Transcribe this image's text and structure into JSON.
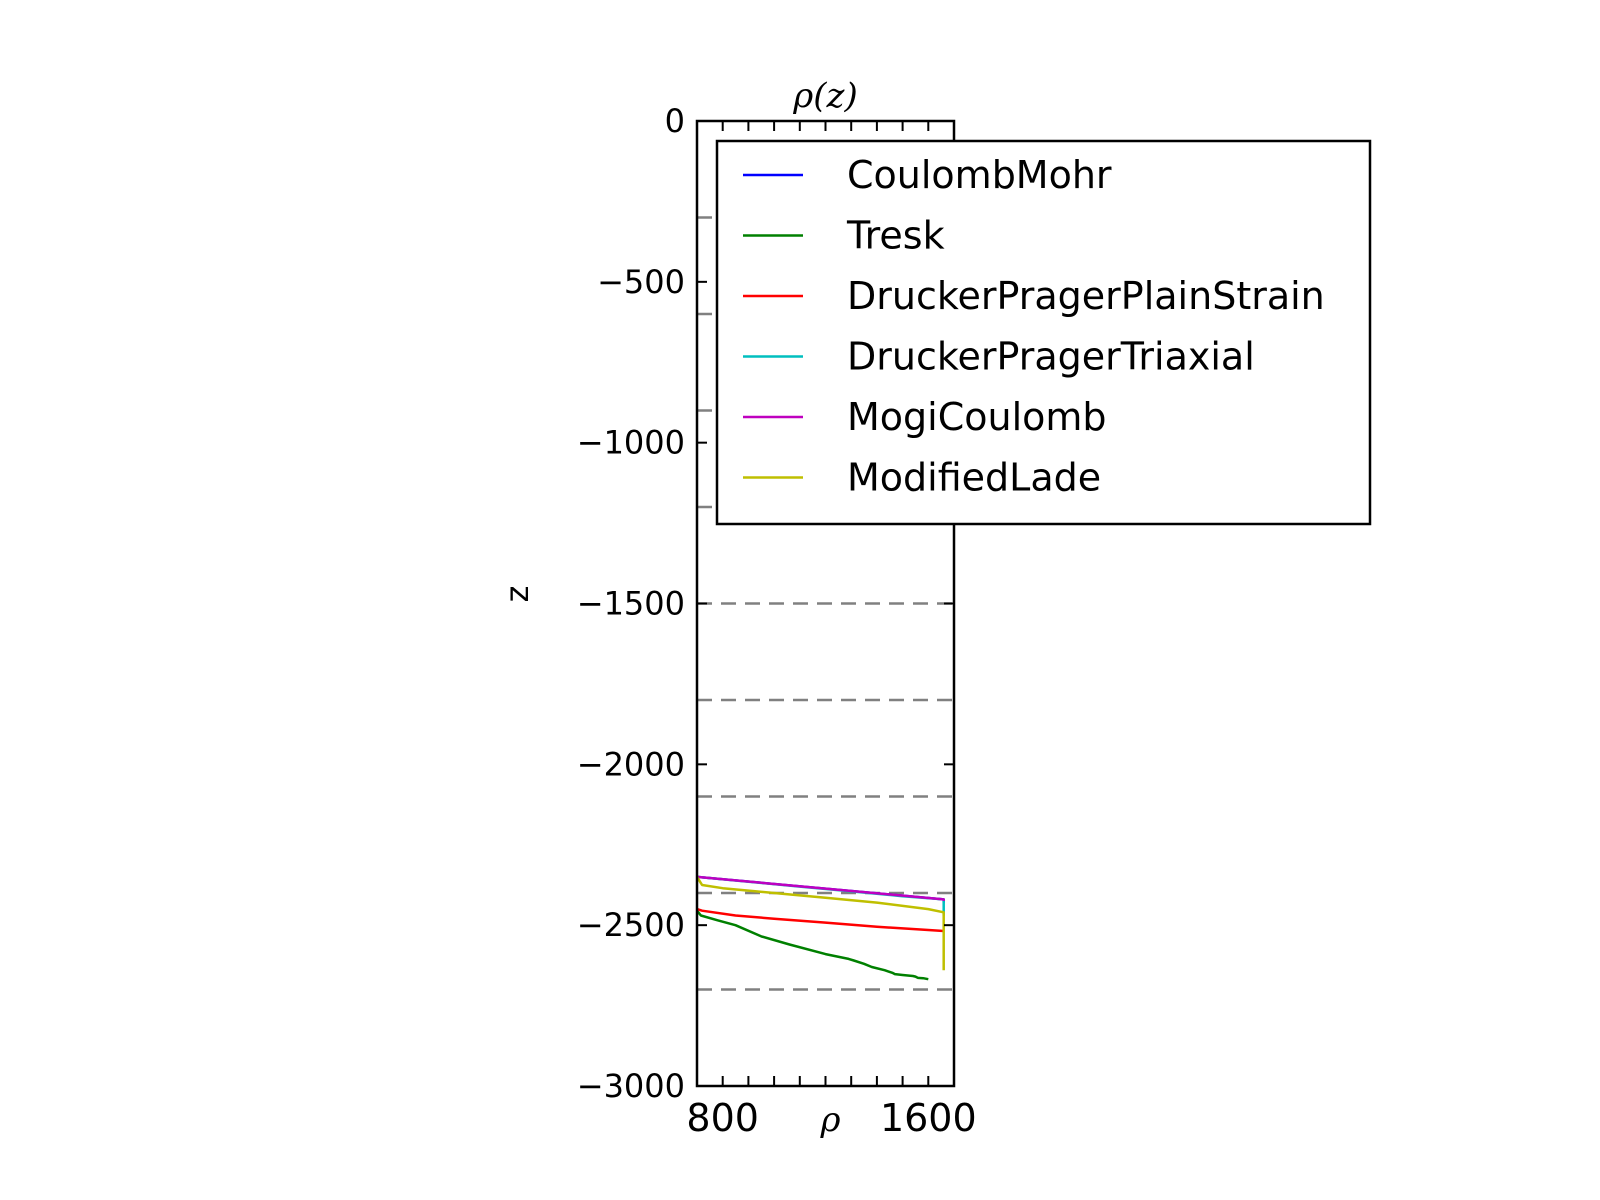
{
  "chart_data": {
    "type": "line",
    "title": "ρ(z)",
    "xlabel": "ρ",
    "ylabel": "z",
    "xlim": [
      700,
      1700
    ],
    "ylim": [
      -3000,
      0
    ],
    "xticks": [
      800,
      1600
    ],
    "xtick_labels": [
      "800",
      "1600"
    ],
    "x_minor_ticks": [
      800,
      900,
      1000,
      1100,
      1200,
      1300,
      1400,
      1500,
      1600
    ],
    "yticks": [
      0,
      -500,
      -1000,
      -1500,
      -2000,
      -2500,
      -3000
    ],
    "ytick_labels": [
      "0",
      "−500",
      "−1000",
      "−1500",
      "−2000",
      "−2500",
      "−3000"
    ],
    "hlines": [
      -300,
      -600,
      -900,
      -1200,
      -1500,
      -1800,
      -2100,
      -2400,
      -2700
    ],
    "hline_color": "#808080",
    "legend_position": "upper-right",
    "grid": false,
    "series": [
      {
        "name": "CoulombMohr",
        "color": "#0000ff",
        "x": [
          700,
          1660,
          1660
        ],
        "y": [
          -2350,
          -2420,
          -2430
        ]
      },
      {
        "name": "Tresk",
        "color": "#008000",
        "x": [
          700,
          715,
          780,
          850,
          950,
          1060,
          1200,
          1290,
          1310,
          1350,
          1380,
          1430,
          1460,
          1470,
          1500,
          1540,
          1550,
          1555,
          1560,
          1580,
          1600
        ],
        "y": [
          -2455,
          -2470,
          -2485,
          -2500,
          -2535,
          -2560,
          -2590,
          -2605,
          -2610,
          -2620,
          -2630,
          -2640,
          -2648,
          -2652,
          -2655,
          -2658,
          -2660,
          -2662,
          -2664,
          -2665,
          -2668
        ]
      },
      {
        "name": "DruckerPragerPlainStrain",
        "color": "#ff0000",
        "x": [
          700,
          720,
          850,
          1000,
          1200,
          1400,
          1600,
          1660
        ],
        "y": [
          -2450,
          -2455,
          -2470,
          -2480,
          -2492,
          -2505,
          -2515,
          -2518
        ]
      },
      {
        "name": "DruckerPragerTriaxial",
        "color": "#00bfbf",
        "x": [
          700,
          900,
          1100,
          1300,
          1500,
          1660,
          1660
        ],
        "y": [
          -2350,
          -2365,
          -2380,
          -2395,
          -2410,
          -2420,
          -2470
        ]
      },
      {
        "name": "MogiCoulomb",
        "color": "#bf00bf",
        "x": [
          700,
          1660,
          1660
        ],
        "y": [
          -2350,
          -2420,
          -2425
        ]
      },
      {
        "name": "ModifiedLade",
        "color": "#bfbf00",
        "x": [
          700,
          720,
          800,
          1000,
          1200,
          1400,
          1600,
          1660,
          1660
        ],
        "y": [
          -2350,
          -2375,
          -2385,
          -2400,
          -2415,
          -2430,
          -2450,
          -2460,
          -2640
        ]
      }
    ]
  }
}
